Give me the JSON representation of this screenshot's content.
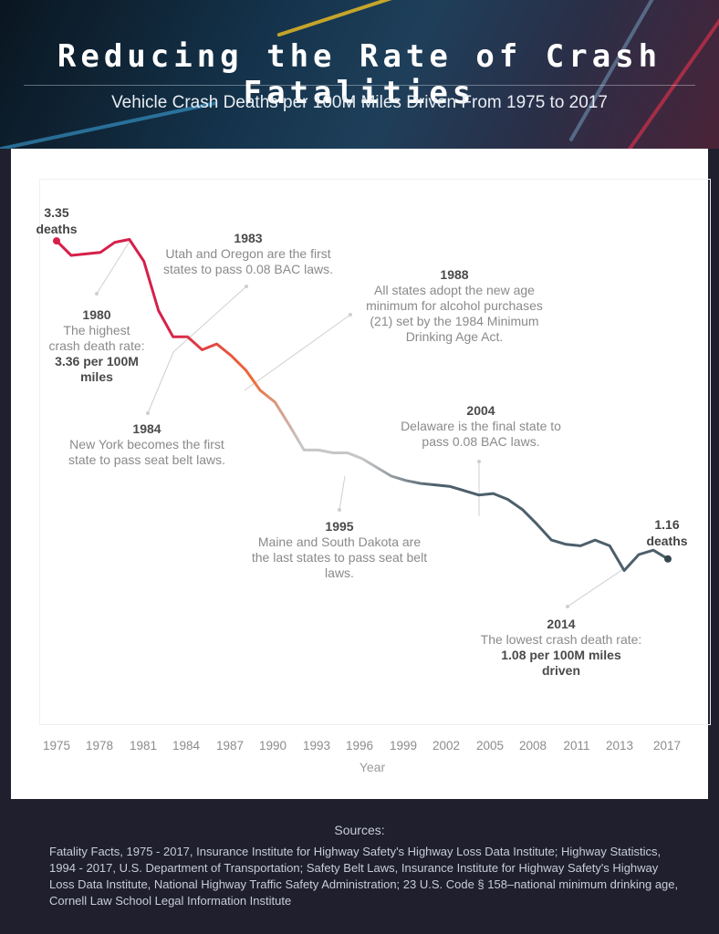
{
  "header": {
    "title": "Reducing the Rate of Crash Fatalities",
    "subtitle": "Vehicle Crash Deaths per 100M Miles Driven From 1975 to 2017"
  },
  "chart_data": {
    "type": "line",
    "title": "",
    "xlabel": "Year",
    "ylabel": "",
    "xlim": [
      1975,
      2017
    ],
    "x_ticks": [
      "1975",
      "1978",
      "1981",
      "1984",
      "1987",
      "1990",
      "1993",
      "1996",
      "1999",
      "2002",
      "2005",
      "2008",
      "2011",
      "2013",
      "2017"
    ],
    "grid": false,
    "series": [
      {
        "x": [
          1975,
          1976,
          1977,
          1978,
          1979,
          1980,
          1981,
          1982,
          1983,
          1984,
          1985,
          1986,
          1987,
          1988,
          1989,
          1990,
          1991,
          1992,
          1993,
          1994,
          1995,
          1996,
          1997,
          1998,
          1999,
          2000,
          2001,
          2002,
          2003,
          2004,
          2005,
          2006,
          2007,
          2008,
          2009,
          2010,
          2011,
          2012,
          2013,
          2014,
          2015,
          2016,
          2017
        ],
        "y": [
          3.35,
          3.25,
          3.26,
          3.27,
          3.34,
          3.36,
          3.21,
          2.87,
          2.69,
          2.69,
          2.6,
          2.64,
          2.56,
          2.46,
          2.32,
          2.24,
          2.08,
          1.91,
          1.91,
          1.89,
          1.89,
          1.85,
          1.79,
          1.73,
          1.7,
          1.68,
          1.67,
          1.66,
          1.63,
          1.6,
          1.61,
          1.57,
          1.5,
          1.4,
          1.29,
          1.26,
          1.25,
          1.29,
          1.25,
          1.08,
          1.19,
          1.22,
          1.16
        ],
        "colors": {
          "start": "#d61f4a",
          "mid": "#ee6b3a",
          "fade": "#c6c6c6",
          "end": "#4c5f6b"
        }
      }
    ],
    "data_labels": {
      "start": {
        "value": "3.35",
        "unit": "deaths"
      },
      "end": {
        "value": "1.16",
        "unit": "deaths"
      }
    },
    "annotations": [
      {
        "year": "1980",
        "lines": [
          "The highest",
          "crash death rate:"
        ],
        "bold": [
          "3.36 per 100M",
          "miles"
        ]
      },
      {
        "year": "1983",
        "lines": [
          "Utah and Oregon are the first",
          "states to pass 0.08 BAC laws."
        ],
        "bold": []
      },
      {
        "year": "1984",
        "lines": [
          "New York becomes the first",
          "state to pass seat belt laws."
        ],
        "bold": []
      },
      {
        "year": "1988",
        "lines": [
          "All states adopt the new age",
          "minimum for alcohol purchases",
          "(21) set by the 1984 Minimum",
          "Drinking Age Act."
        ],
        "bold": []
      },
      {
        "year": "1995",
        "lines": [
          "Maine and South Dakota are",
          "the last states to pass seat belt",
          "laws."
        ],
        "bold": []
      },
      {
        "year": "2004",
        "lines": [
          "Delaware is the final state to",
          "pass 0.08 BAC laws."
        ],
        "bold": []
      },
      {
        "year": "2014",
        "lines": [
          "The lowest crash death rate:"
        ],
        "bold": [
          "1.08 per 100M miles",
          "driven"
        ]
      }
    ]
  },
  "sources": {
    "title": "Sources:",
    "text": "Fatality Facts, 1975 - 2017, Insurance Institute for Highway Safety's Highway Loss Data Institute; Highway Statistics, 1994 - 2017, U.S. Department of Transportation; Safety Belt Laws, Insurance Institute for Highway Safety's Highway Loss Data Institute, National Highway Traffic Safety Administration; 23 U.S. Code § 158–national minimum drinking age, Cornell Law School Legal Information Institute"
  }
}
